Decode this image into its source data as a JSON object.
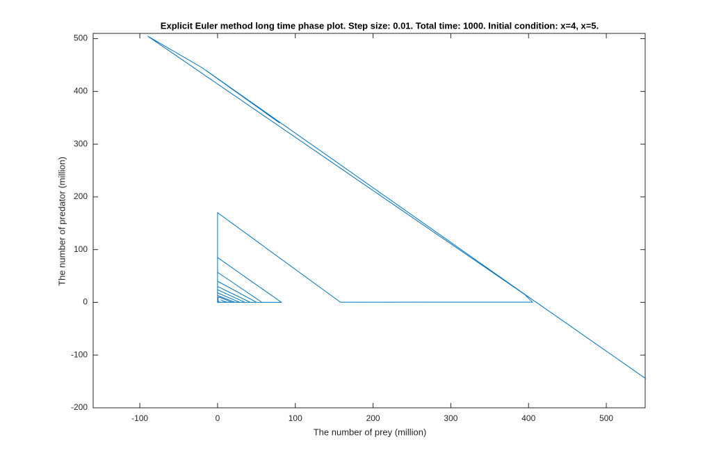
{
  "chart_data": {
    "type": "line",
    "title": "Explicit Euler method long time phase plot. Step size: 0.01. Total time: 1000. Initial condition: x=4, x=5.",
    "x_label": "The number of prey (million)",
    "y_label": "The number of predator (million)",
    "x": [
      4,
      8,
      12,
      5,
      1,
      0.5,
      2,
      18,
      6,
      0.5,
      0,
      22,
      0,
      0,
      28,
      0,
      0,
      35,
      0,
      0,
      42,
      0,
      0,
      50,
      0,
      0,
      57,
      0,
      0,
      82,
      0,
      0,
      158,
      405,
      395,
      -90,
      -20,
      80,
      -15,
      405,
      410,
      551
    ],
    "series": [
      {
        "name": "predator",
        "color": "#0072bd",
        "values": [
          5,
          2,
          0.5,
          0.3,
          1,
          8,
          10,
          0.5,
          0.2,
          0.5,
          13,
          0.3,
          0.3,
          18,
          0.3,
          0.2,
          24,
          0.2,
          0.1,
          30,
          0.1,
          0.1,
          40,
          0.1,
          0.1,
          57,
          0.1,
          0.1,
          85,
          0.1,
          0.1,
          170,
          0.2,
          0.5,
          15,
          505,
          445,
          340,
          440,
          5,
          0,
          -145
        ]
      }
    ],
    "xlim": [
      -160,
      550
    ],
    "xticks": [
      -100,
      0,
      100,
      200,
      300,
      400,
      500
    ],
    "ylim": [
      -200,
      510
    ],
    "yticks": [
      -200,
      -100,
      0,
      100,
      200,
      300,
      400,
      500
    ],
    "grid": false
  }
}
